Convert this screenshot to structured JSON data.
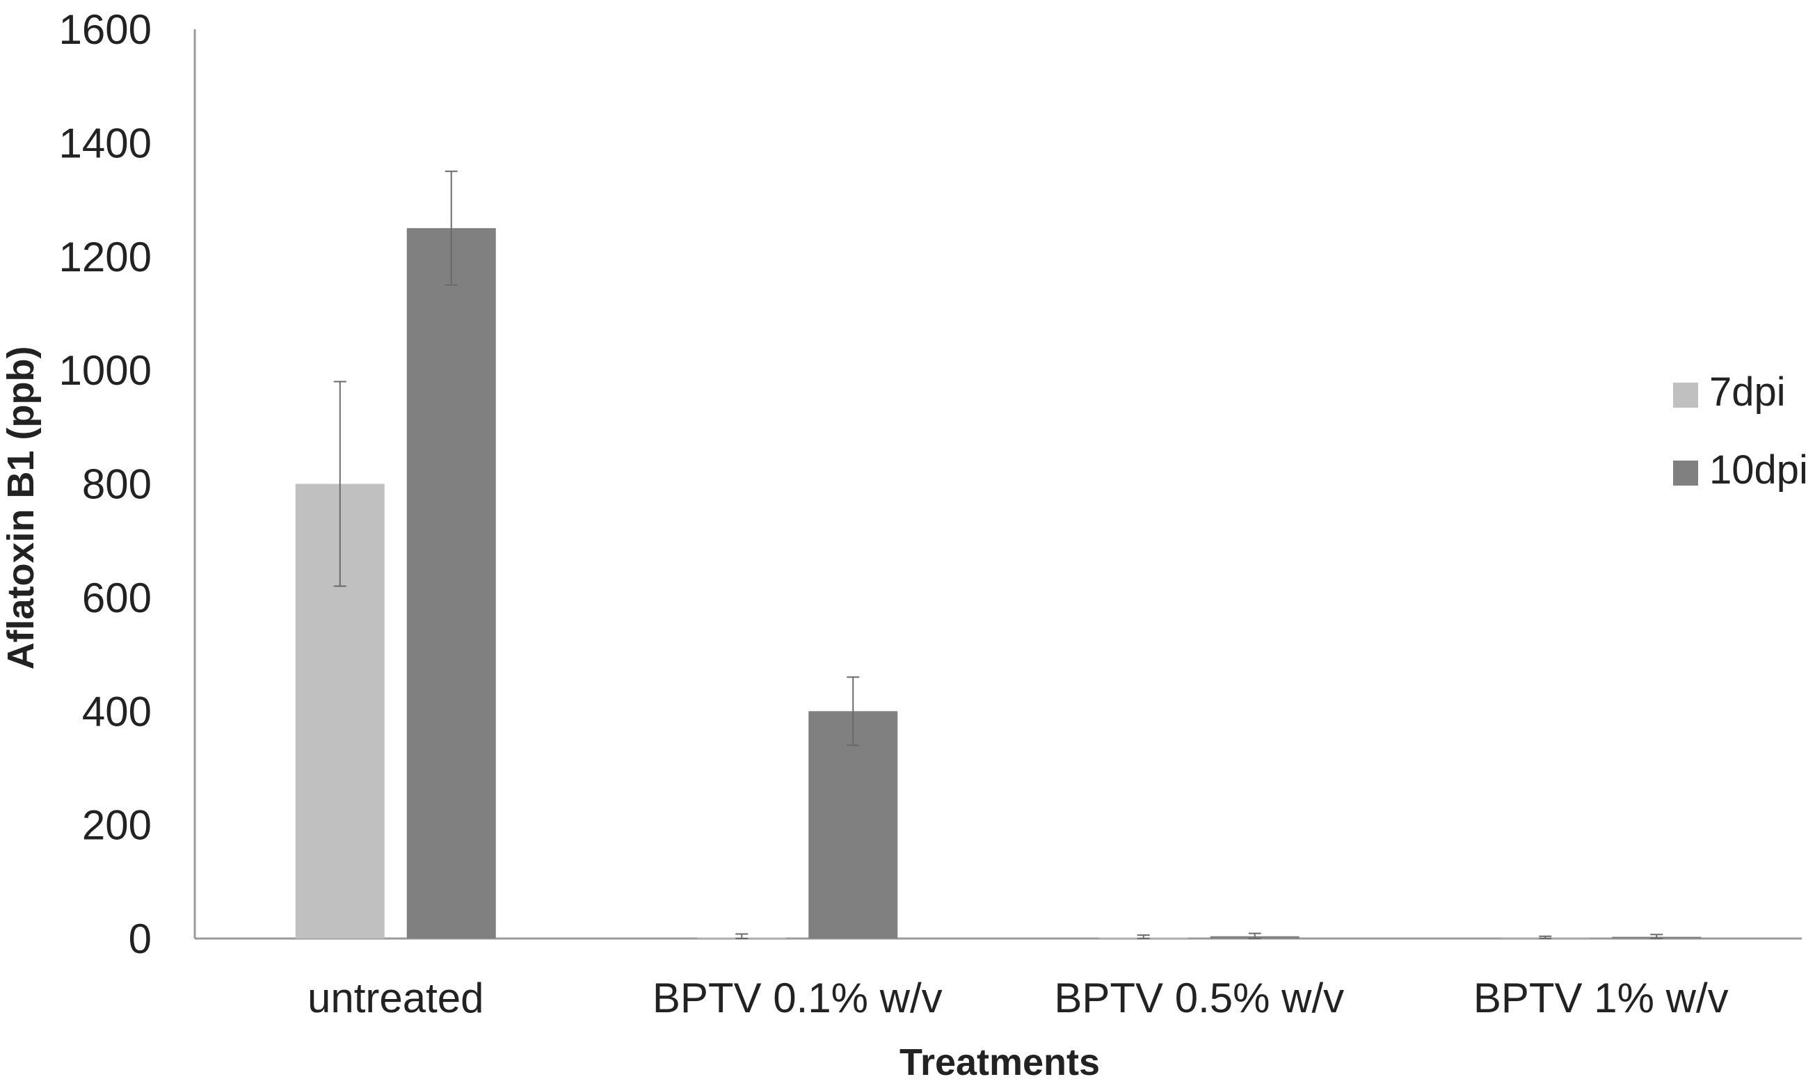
{
  "chart_data": {
    "type": "bar",
    "title": "",
    "xlabel": "Treatments",
    "ylabel": "Aflatoxin B1 (ppb)",
    "ylim": [
      0,
      1600
    ],
    "yticks": [
      "0",
      "200",
      "400",
      "600",
      "800",
      "1000",
      "1200",
      "1400",
      "1600"
    ],
    "categories": [
      "untreated",
      "BPTV 0.1% w/v",
      "BPTV 0.5% w/v",
      "BPTV 1% w/v"
    ],
    "series": [
      {
        "name": "7dpi",
        "color": "#c0c0c0",
        "values": [
          800,
          2,
          2,
          1
        ],
        "errors": [
          180,
          6,
          4,
          3
        ]
      },
      {
        "name": "10dpi",
        "color": "#808080",
        "values": [
          1250,
          400,
          4,
          3
        ],
        "errors": [
          100,
          60,
          5,
          4
        ]
      }
    ],
    "legend_position": "right",
    "grid": false
  }
}
